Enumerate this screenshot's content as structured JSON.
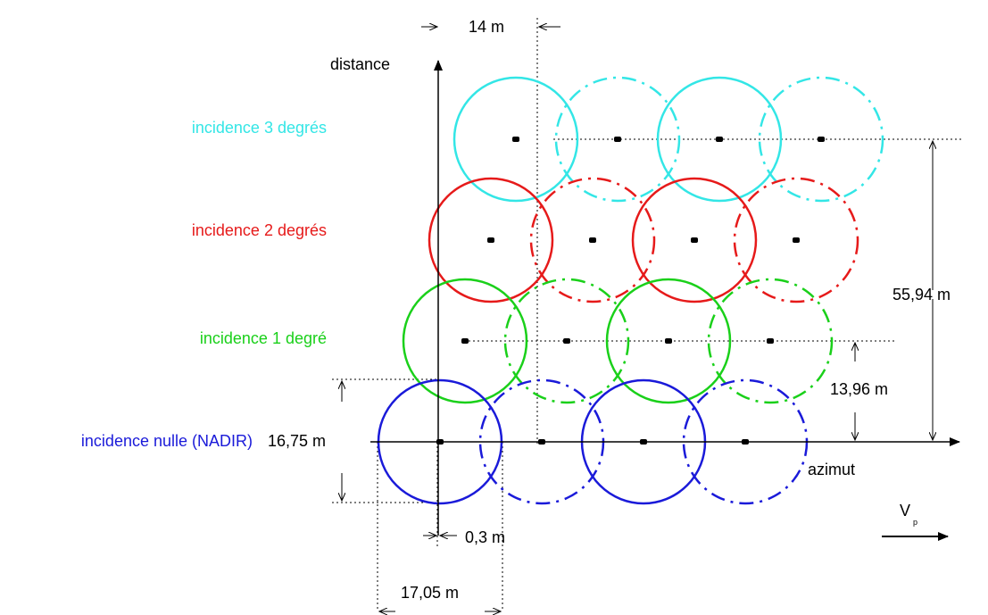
{
  "axes": {
    "y_label": "distance",
    "x_label": "azimut",
    "velocity_label": "V",
    "velocity_subscript": "p"
  },
  "rows": [
    {
      "label": "incidence 3 degrés",
      "color": "#33e6e6"
    },
    {
      "label": "incidence 2 degrés",
      "color": "#e61a1a"
    },
    {
      "label": "incidence 1 degré",
      "color": "#1ad01a"
    },
    {
      "label": "incidence nulle (NADIR)",
      "color": "#1a1ad9"
    }
  ],
  "dimensions": {
    "top_spacing": "14 m",
    "total_range": "55,94 m",
    "row_spacing": "13,96 m",
    "footprint_height": "16,75 m",
    "offset": "0,3 m",
    "footprint_width": "17,05 m"
  }
}
